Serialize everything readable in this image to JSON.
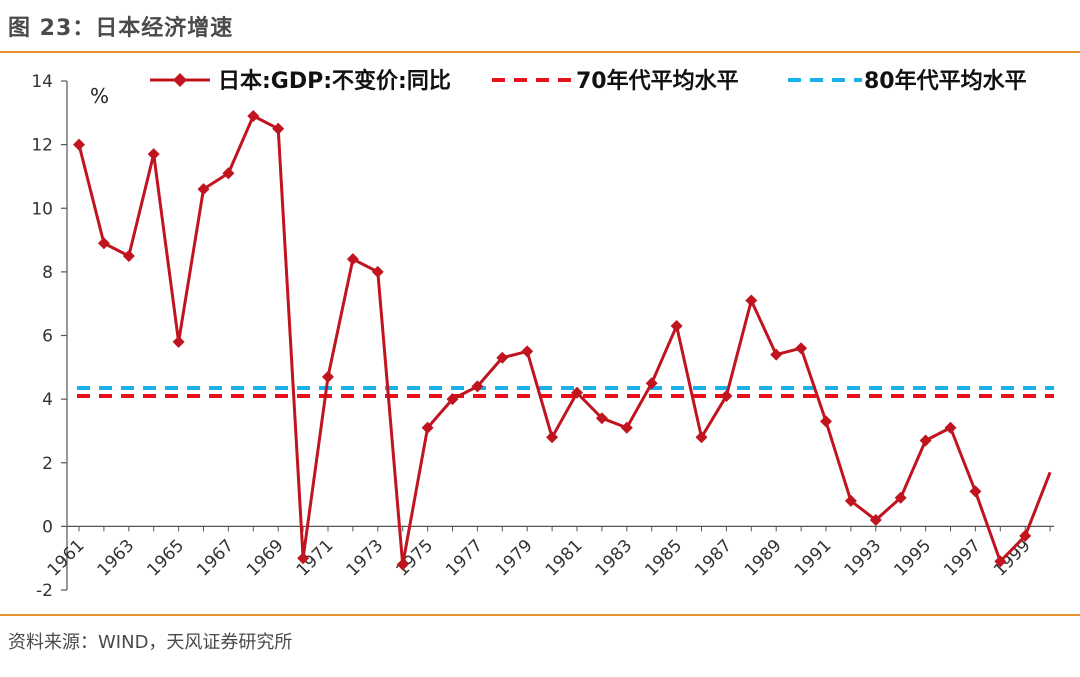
{
  "figure": {
    "title": "图 23：日本经济增速",
    "source": "资料来源：WIND，天风证券研究所"
  },
  "colors": {
    "series": "#c0141e",
    "avg70": "#e8101b",
    "avg80": "#1ab0e8",
    "rule": "#e8922f"
  },
  "chart_data": {
    "type": "line",
    "unit_label": "%",
    "ylim": [
      -2,
      14
    ],
    "yticks": [
      -2,
      0,
      2,
      4,
      6,
      8,
      10,
      12,
      14
    ],
    "x": [
      1961,
      1962,
      1963,
      1964,
      1965,
      1966,
      1967,
      1968,
      1969,
      1970,
      1971,
      1972,
      1973,
      1974,
      1975,
      1976,
      1977,
      1978,
      1979,
      1980,
      1981,
      1982,
      1983,
      1984,
      1985,
      1986,
      1987,
      1988,
      1989,
      1990,
      1991,
      1992,
      1993,
      1994,
      1995,
      1996,
      1997,
      1998,
      1999,
      2000
    ],
    "xtick_labels": [
      "1961",
      "1963",
      "1965",
      "1967",
      "1969",
      "1971",
      "1973",
      "1975",
      "1977",
      "1979",
      "1981",
      "1983",
      "1985",
      "1987",
      "1989",
      "1991",
      "1993",
      "1995",
      "1997",
      "1999"
    ],
    "series": [
      {
        "name": "日本:GDP:不变价:同比",
        "values": [
          12.0,
          8.9,
          8.5,
          11.7,
          5.8,
          10.6,
          11.1,
          12.9,
          12.5,
          -1.0,
          4.7,
          8.4,
          8.0,
          -1.2,
          3.1,
          4.0,
          4.4,
          5.3,
          5.5,
          2.8,
          4.2,
          3.4,
          3.1,
          4.5,
          6.3,
          2.8,
          4.1,
          7.1,
          5.4,
          5.6,
          3.3,
          0.8,
          0.2,
          0.9,
          2.7,
          3.1,
          1.1,
          -1.1,
          -0.3,
          1.7
        ]
      }
    ],
    "reference_lines": [
      {
        "name": "70年代平均水平",
        "value": 4.1
      },
      {
        "name": "80年代平均水平",
        "value": 4.35
      }
    ],
    "legend_position": "top"
  }
}
